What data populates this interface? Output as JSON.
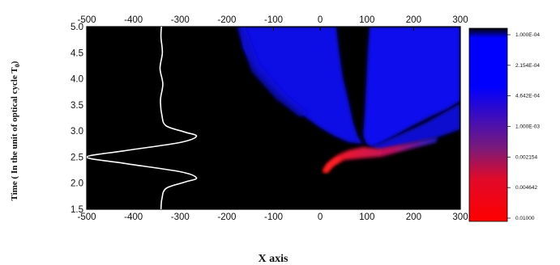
{
  "chart_data": {
    "type": "heatmap",
    "xlabel": "X axis",
    "ylabel": "Time ( In the unit of optical cycle T",
    "ylabel_sub": "0",
    "ylabel_end": ")",
    "xlim": [
      -500,
      300
    ],
    "ylim": [
      1.5,
      5.0
    ],
    "x_ticks": [
      -500,
      -400,
      -300,
      -200,
      -100,
      0,
      100,
      200,
      300
    ],
    "x_tick_labels": [
      "-500",
      "-400",
      "-300",
      "-200",
      "-100",
      "0",
      "100",
      "200",
      "300"
    ],
    "y_ticks": [
      1.5,
      2.0,
      2.5,
      3.0,
      3.5,
      4.0,
      4.5,
      5.0
    ],
    "y_tick_labels": [
      "1.5",
      "2.0",
      "2.5",
      "3.0",
      "3.5",
      "4.0",
      "4.5",
      "5.0"
    ],
    "colorbar": {
      "labels": [
        "1.000E-04",
        "2.154E-04",
        "4.642E-04",
        "1.000E-03",
        "0.002154",
        "0.004642",
        "0.01000"
      ],
      "colors": [
        "#000000",
        "#0000ff",
        "#ff0000"
      ]
    },
    "background_color": "#000000",
    "pulse_curve": {
      "color": "#ffffff",
      "x_baseline": -340,
      "x_min": -500,
      "x_max_lobe": -265,
      "points": [
        [
          -341,
          1.5
        ],
        [
          -339,
          1.7
        ],
        [
          -330,
          1.9
        ],
        [
          -290,
          2.02
        ],
        [
          -265,
          2.1
        ],
        [
          -300,
          2.22
        ],
        [
          -420,
          2.38
        ],
        [
          -500,
          2.5
        ],
        [
          -420,
          2.62
        ],
        [
          -300,
          2.78
        ],
        [
          -265,
          2.9
        ],
        [
          -290,
          2.98
        ],
        [
          -330,
          3.1
        ],
        [
          -339,
          3.3
        ],
        [
          -342,
          3.6
        ],
        [
          -337,
          3.9
        ],
        [
          -343,
          4.2
        ],
        [
          -338,
          4.5
        ],
        [
          -341,
          4.8
        ],
        [
          -340,
          5.0
        ]
      ]
    }
  }
}
